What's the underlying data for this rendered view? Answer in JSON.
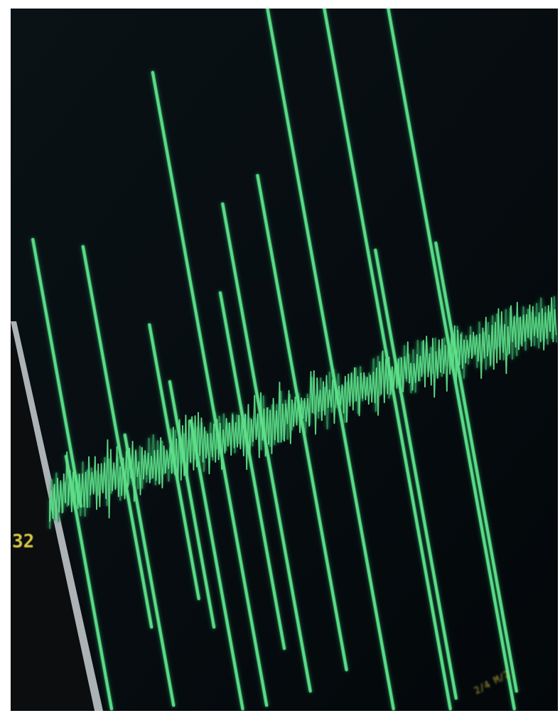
{
  "scene": {
    "subject": "seismograph-waveform",
    "colors": {
      "screen_background": "#060a0c",
      "trace": "#5fe08a",
      "trace_glow": "#2f9a5c",
      "bezel_edge": "#c9d0d4",
      "readout_text": "#d8c84a",
      "frame": "#ffffff"
    }
  },
  "screen": {
    "left_readout": "32",
    "bottom_readout": "2/4 M/2"
  }
}
